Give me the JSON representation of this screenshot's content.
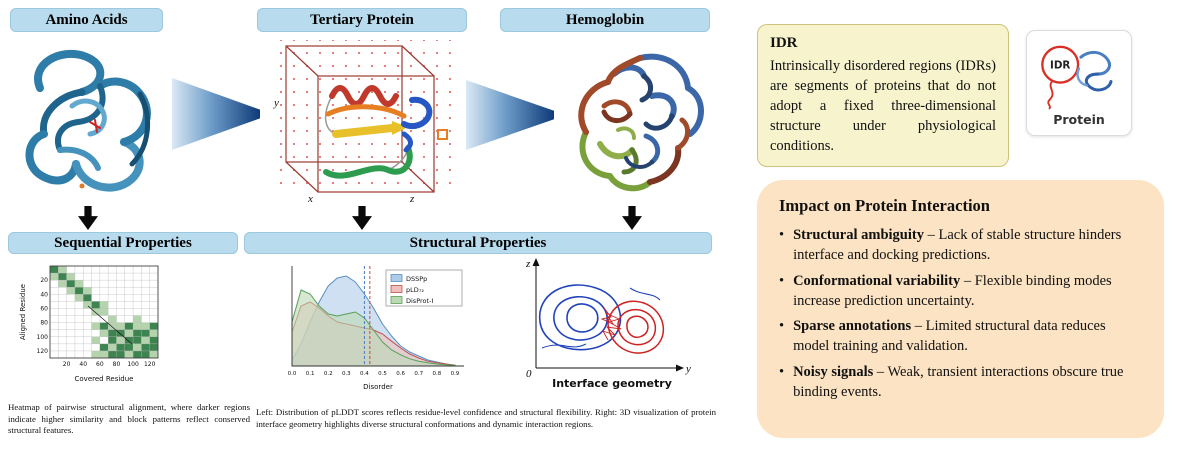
{
  "pipeline": {
    "stage_labels": [
      "Amino Acids",
      "Tertiary Protein",
      "Hemoglobin"
    ],
    "property_labels": [
      "Sequential Properties",
      "Structural Properties"
    ],
    "cube_axes": {
      "x": "x",
      "y": "y",
      "z": "z"
    }
  },
  "captions": {
    "heatmap": "Heatmap of pairwise structural alignment, where darker regions indicate higher similarity and block patterns reflect conserved structural features.",
    "plots": "Left: Distribution of pLDDT scores reflects residue-level confidence and structural flexibility. Right: 3D visualization of protein interface geometry highlights diverse structural conformations and dynamic interaction regions."
  },
  "idr_card": {
    "title": "IDR",
    "body": "Intrinsically disordered regions (IDRs) are segments of proteins that do not adopt a fixed three-dimensional structure under physiological conditions."
  },
  "protein_icon": {
    "circle_label": "IDR",
    "caption": "Protein"
  },
  "impact_card": {
    "title": "Impact on Protein Interaction",
    "bullets": [
      {
        "lead": "Structural ambiguity",
        "rest": " – Lack of stable structure hinders interface and docking predictions."
      },
      {
        "lead": "Conformational variability",
        "rest": " – Flexible binding modes increase prediction uncertainty."
      },
      {
        "lead": "Sparse annotations",
        "rest": " – Limited structural data reduces model training and validation."
      },
      {
        "lead": "Noisy signals",
        "rest": " – Weak, transient interactions obscure true binding events."
      }
    ]
  },
  "chart_data": [
    {
      "id": "alignment-heatmap",
      "type": "heatmap",
      "xlabel": "Covered Residue",
      "ylabel": "Aligned Residue",
      "xticks": [
        20,
        40,
        60,
        80,
        100,
        120
      ],
      "yticks": [
        20,
        40,
        60,
        80,
        100,
        120
      ],
      "axis_max": 130,
      "colors": {
        "light": "#b5d4ae",
        "dark": "#3e8450"
      },
      "matrix": [
        [
          2,
          1,
          0,
          0,
          0,
          0,
          0,
          0,
          0,
          0,
          0,
          0,
          0
        ],
        [
          1,
          2,
          1,
          0,
          0,
          0,
          0,
          0,
          0,
          0,
          0,
          0,
          0
        ],
        [
          0,
          1,
          2,
          1,
          0,
          0,
          0,
          0,
          0,
          0,
          0,
          0,
          0
        ],
        [
          0,
          0,
          1,
          2,
          1,
          0,
          0,
          0,
          0,
          0,
          0,
          0,
          0
        ],
        [
          0,
          0,
          0,
          1,
          2,
          0,
          0,
          0,
          0,
          0,
          0,
          0,
          0
        ],
        [
          0,
          0,
          0,
          0,
          1,
          2,
          1,
          0,
          0,
          0,
          0,
          0,
          0
        ],
        [
          0,
          0,
          0,
          0,
          0,
          1,
          1,
          0,
          0,
          0,
          0,
          0,
          0
        ],
        [
          0,
          0,
          0,
          0,
          0,
          0,
          0,
          1,
          0,
          0,
          1,
          0,
          0
        ],
        [
          0,
          0,
          0,
          0,
          0,
          1,
          2,
          1,
          1,
          2,
          1,
          1,
          2
        ],
        [
          0,
          0,
          0,
          0,
          0,
          0,
          1,
          2,
          2,
          1,
          2,
          2,
          1
        ],
        [
          0,
          0,
          0,
          0,
          0,
          1,
          0,
          2,
          1,
          2,
          2,
          1,
          2
        ],
        [
          0,
          0,
          0,
          0,
          0,
          0,
          2,
          1,
          2,
          2,
          1,
          2,
          2
        ],
        [
          0,
          0,
          0,
          0,
          0,
          1,
          1,
          2,
          2,
          1,
          2,
          2,
          1
        ]
      ]
    },
    {
      "id": "disorder-density",
      "type": "area",
      "xlabel": "Disorder",
      "xticks": [
        "0.0",
        "0.1",
        "0.2",
        "0.3",
        "0.4",
        "0.5",
        "0.6",
        "0.7",
        "0.8",
        "0.9"
      ],
      "xmax": 0.95,
      "ymax": 2.5,
      "x": [
        0,
        0.05,
        0.1,
        0.15,
        0.2,
        0.25,
        0.3,
        0.35,
        0.4,
        0.45,
        0.5,
        0.55,
        0.6,
        0.65,
        0.7,
        0.75,
        0.8,
        0.85,
        0.9
      ],
      "series": [
        {
          "name": "DSSPp",
          "color": "#5b8ec4",
          "fill": "#aecbe8",
          "y": [
            0.15,
            0.55,
            1.1,
            1.6,
            2.0,
            2.2,
            2.25,
            2.1,
            1.8,
            1.45,
            1.05,
            0.75,
            0.5,
            0.35,
            0.25,
            0.15,
            0.1,
            0.05,
            0.02
          ]
        },
        {
          "name": "pLD₇₂",
          "color": "#c0504d",
          "fill": "#f0c0bc",
          "y": [
            0.85,
            1.5,
            1.6,
            1.45,
            1.25,
            1.1,
            1.05,
            1.0,
            0.95,
            0.9,
            0.8,
            0.62,
            0.45,
            0.3,
            0.2,
            0.12,
            0.08,
            0.05,
            0.02
          ]
        },
        {
          "name": "DisProt-I",
          "color": "#5a9e5a",
          "fill": "#bcd9b4",
          "y": [
            1.1,
            1.9,
            1.8,
            1.5,
            1.3,
            1.25,
            1.3,
            1.35,
            1.2,
            0.9,
            0.6,
            0.4,
            0.28,
            0.18,
            0.12,
            0.08,
            0.05,
            0.03,
            0.02
          ]
        }
      ],
      "vlines": [
        {
          "x": 0.4,
          "color": "#4a7ebf"
        },
        {
          "x": 0.43,
          "color": "#cc4444"
        }
      ]
    },
    {
      "id": "interface-geometry",
      "type": "scatter",
      "title": "Interface geometry",
      "axis_labels": {
        "vertical": "z",
        "horizontal": "y",
        "origin": "0"
      }
    }
  ]
}
